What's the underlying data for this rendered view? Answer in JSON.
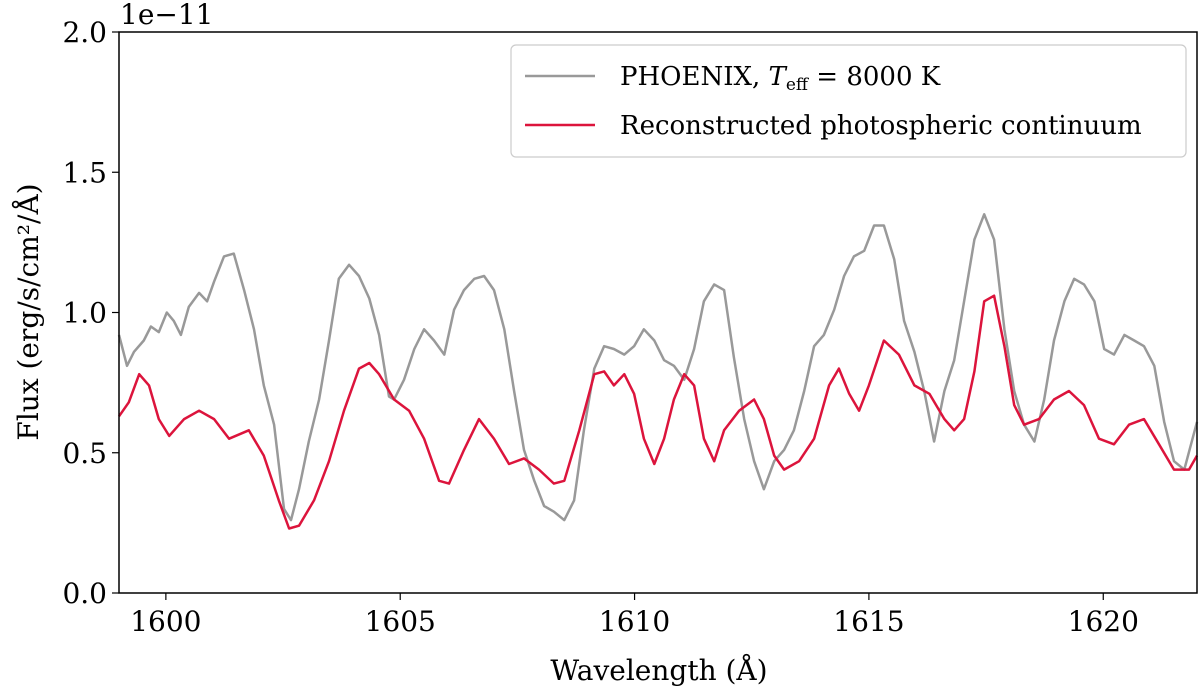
{
  "chart_data": {
    "type": "line",
    "title": "",
    "xlabel": "Wavelength (Å)",
    "ylabel": "Flux (erg/s/cm²/Å)",
    "y_offset_text": "1e−11",
    "xlim": [
      1599,
      1622
    ],
    "ylim": [
      0.0,
      2.0
    ],
    "x_ticks": [
      1600,
      1605,
      1610,
      1615,
      1620
    ],
    "x_tick_labels": [
      "1600",
      "1605",
      "1610",
      "1615",
      "1620"
    ],
    "y_ticks": [
      0.0,
      0.5,
      1.0,
      1.5,
      2.0
    ],
    "y_tick_labels": [
      "0.0",
      "0.5",
      "1.0",
      "1.5",
      "2.0"
    ],
    "grid": false,
    "legend_placement": "top-right",
    "series": [
      {
        "name": "PHOENIX, T_eff = 8000 K",
        "legend_prefix": "PHOENIX, ",
        "legend_T": "T",
        "legend_sub": "eff",
        "legend_suffix": " = 8000 K",
        "color": "#999999",
        "x": [
          1599.0,
          1599.17,
          1599.32,
          1599.53,
          1599.68,
          1599.85,
          1600.02,
          1600.17,
          1600.32,
          1600.49,
          1600.71,
          1600.88,
          1601.03,
          1601.24,
          1601.45,
          1601.67,
          1601.88,
          1602.09,
          1602.31,
          1602.52,
          1602.67,
          1602.84,
          1603.05,
          1603.27,
          1603.48,
          1603.69,
          1603.91,
          1604.12,
          1604.34,
          1604.55,
          1604.76,
          1604.87,
          1605.08,
          1605.3,
          1605.51,
          1605.72,
          1605.94,
          1606.15,
          1606.36,
          1606.58,
          1606.79,
          1607.0,
          1607.22,
          1607.43,
          1607.64,
          1607.86,
          1608.07,
          1608.28,
          1608.5,
          1608.71,
          1608.92,
          1609.14,
          1609.35,
          1609.56,
          1609.78,
          1609.99,
          1610.2,
          1610.42,
          1610.63,
          1610.84,
          1611.06,
          1611.27,
          1611.48,
          1611.7,
          1611.91,
          1612.12,
          1612.34,
          1612.55,
          1612.76,
          1612.98,
          1613.19,
          1613.4,
          1613.62,
          1613.83,
          1614.04,
          1614.26,
          1614.47,
          1614.68,
          1614.9,
          1615.11,
          1615.32,
          1615.54,
          1615.75,
          1615.97,
          1616.18,
          1616.39,
          1616.61,
          1616.82,
          1617.03,
          1617.25,
          1617.46,
          1617.67,
          1617.89,
          1618.1,
          1618.31,
          1618.53,
          1618.74,
          1618.95,
          1619.17,
          1619.38,
          1619.59,
          1619.81,
          1620.02,
          1620.23,
          1620.45,
          1620.66,
          1620.87,
          1621.09,
          1621.3,
          1621.51,
          1621.73,
          1622.0
        ],
        "y": [
          0.92,
          0.81,
          0.86,
          0.9,
          0.95,
          0.93,
          1.0,
          0.97,
          0.92,
          1.02,
          1.07,
          1.04,
          1.11,
          1.2,
          1.21,
          1.08,
          0.94,
          0.74,
          0.6,
          0.3,
          0.26,
          0.37,
          0.54,
          0.69,
          0.9,
          1.12,
          1.17,
          1.13,
          1.05,
          0.92,
          0.7,
          0.69,
          0.76,
          0.87,
          0.94,
          0.9,
          0.85,
          1.01,
          1.08,
          1.12,
          1.13,
          1.08,
          0.94,
          0.72,
          0.51,
          0.4,
          0.31,
          0.29,
          0.26,
          0.33,
          0.58,
          0.8,
          0.88,
          0.87,
          0.85,
          0.88,
          0.94,
          0.9,
          0.83,
          0.81,
          0.76,
          0.87,
          1.04,
          1.1,
          1.08,
          0.84,
          0.62,
          0.47,
          0.37,
          0.47,
          0.51,
          0.58,
          0.72,
          0.88,
          0.92,
          1.01,
          1.13,
          1.2,
          1.22,
          1.31,
          1.31,
          1.19,
          0.97,
          0.86,
          0.72,
          0.54,
          0.72,
          0.83,
          1.04,
          1.26,
          1.35,
          1.26,
          0.94,
          0.72,
          0.6,
          0.54,
          0.69,
          0.9,
          1.04,
          1.12,
          1.1,
          1.04,
          0.87,
          0.85,
          0.92,
          0.9,
          0.88,
          0.81,
          0.61,
          0.47,
          0.44,
          0.61
        ]
      },
      {
        "name": "Reconstructed photospheric continuum",
        "color": "#dc143c",
        "x": [
          1599.0,
          1599.21,
          1599.43,
          1599.64,
          1599.85,
          1600.07,
          1600.39,
          1600.71,
          1601.03,
          1601.35,
          1601.77,
          1602.09,
          1602.41,
          1602.63,
          1602.84,
          1603.16,
          1603.48,
          1603.8,
          1604.12,
          1604.34,
          1604.55,
          1604.87,
          1605.19,
          1605.51,
          1605.83,
          1606.04,
          1606.36,
          1606.68,
          1607.0,
          1607.32,
          1607.64,
          1607.96,
          1608.28,
          1608.5,
          1608.82,
          1609.14,
          1609.35,
          1609.56,
          1609.78,
          1609.99,
          1610.2,
          1610.42,
          1610.63,
          1610.84,
          1611.06,
          1611.27,
          1611.48,
          1611.7,
          1611.91,
          1612.23,
          1612.55,
          1612.76,
          1612.98,
          1613.19,
          1613.51,
          1613.83,
          1614.15,
          1614.36,
          1614.58,
          1614.79,
          1615.0,
          1615.32,
          1615.64,
          1615.97,
          1616.29,
          1616.61,
          1616.82,
          1617.03,
          1617.25,
          1617.46,
          1617.67,
          1617.89,
          1618.1,
          1618.31,
          1618.63,
          1618.95,
          1619.27,
          1619.59,
          1619.91,
          1620.23,
          1620.55,
          1620.87,
          1621.19,
          1621.51,
          1621.83,
          1622.0
        ],
        "y": [
          0.63,
          0.68,
          0.78,
          0.74,
          0.62,
          0.56,
          0.62,
          0.65,
          0.62,
          0.55,
          0.58,
          0.49,
          0.33,
          0.23,
          0.24,
          0.33,
          0.47,
          0.65,
          0.8,
          0.82,
          0.78,
          0.69,
          0.65,
          0.55,
          0.4,
          0.39,
          0.51,
          0.62,
          0.55,
          0.46,
          0.48,
          0.44,
          0.39,
          0.4,
          0.58,
          0.78,
          0.79,
          0.74,
          0.78,
          0.71,
          0.55,
          0.46,
          0.55,
          0.69,
          0.78,
          0.74,
          0.55,
          0.47,
          0.58,
          0.65,
          0.69,
          0.62,
          0.49,
          0.44,
          0.47,
          0.55,
          0.74,
          0.8,
          0.71,
          0.65,
          0.74,
          0.9,
          0.85,
          0.74,
          0.71,
          0.62,
          0.58,
          0.62,
          0.79,
          1.04,
          1.06,
          0.88,
          0.67,
          0.6,
          0.62,
          0.69,
          0.72,
          0.67,
          0.55,
          0.53,
          0.6,
          0.62,
          0.53,
          0.44,
          0.44,
          0.49
        ]
      }
    ]
  }
}
